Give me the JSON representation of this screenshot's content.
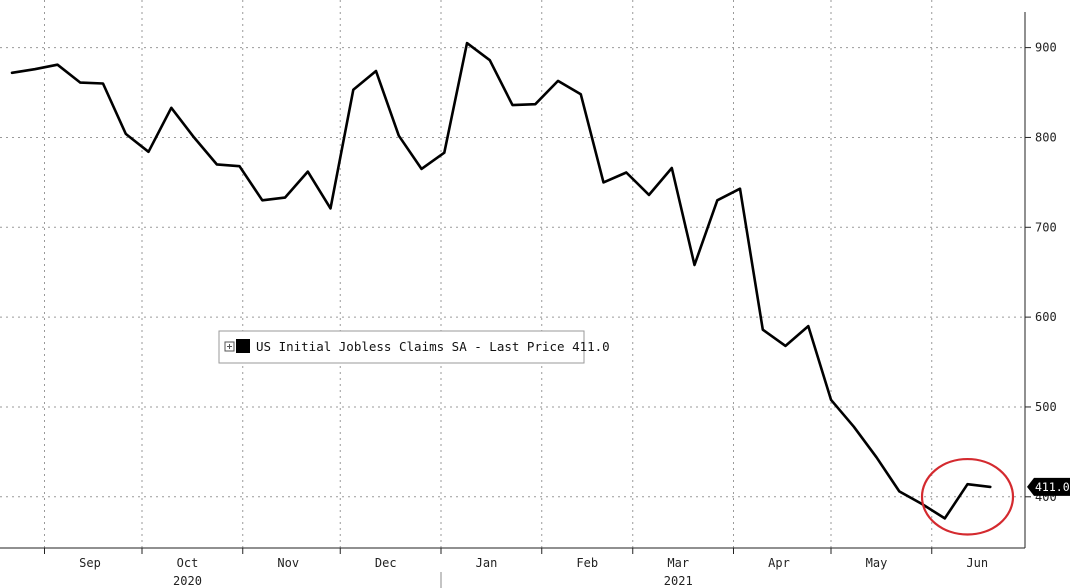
{
  "chart_data": {
    "type": "line",
    "title": "",
    "xlabel": "",
    "ylabel": "",
    "x": [
      "2020-08-22",
      "2020-08-29",
      "2020-09-05",
      "2020-09-12",
      "2020-09-19",
      "2020-09-26",
      "2020-10-03",
      "2020-10-10",
      "2020-10-17",
      "2020-10-24",
      "2020-10-31",
      "2020-11-07",
      "2020-11-14",
      "2020-11-21",
      "2020-11-28",
      "2020-12-05",
      "2020-12-12",
      "2020-12-19",
      "2020-12-26",
      "2021-01-02",
      "2021-01-09",
      "2021-01-16",
      "2021-01-23",
      "2021-01-30",
      "2021-02-06",
      "2021-02-13",
      "2021-02-20",
      "2021-02-27",
      "2021-03-06",
      "2021-03-13",
      "2021-03-20",
      "2021-03-27",
      "2021-04-03",
      "2021-04-10",
      "2021-04-17",
      "2021-04-24",
      "2021-05-01",
      "2021-05-08",
      "2021-05-15",
      "2021-05-22",
      "2021-05-29",
      "2021-06-05",
      "2021-06-12",
      "2021-06-19"
    ],
    "series": [
      {
        "name": "US Initial Jobless Claims SA",
        "color": "#000000",
        "values": [
          872,
          876,
          881,
          861,
          860,
          804,
          784,
          833,
          800,
          770,
          768,
          730,
          733,
          762,
          721,
          853,
          874,
          802,
          765,
          783,
          905,
          886,
          836,
          837,
          863,
          848,
          750,
          761,
          736,
          766,
          658,
          730,
          743,
          586,
          568,
          590,
          508,
          478,
          444,
          406,
          392,
          376,
          414,
          411
        ]
      }
    ],
    "ylim": [
      343,
      953
    ],
    "y_ticks": [
      400,
      500,
      600,
      700,
      800,
      900
    ],
    "y_tick_labels": [
      "400",
      "500",
      "600",
      "700",
      "800",
      "900"
    ],
    "months": [
      {
        "label": "Sep",
        "date": "2020-09-15"
      },
      {
        "label": "Oct",
        "date": "2020-10-15"
      },
      {
        "label": "Nov",
        "date": "2020-11-15"
      },
      {
        "label": "Dec",
        "date": "2020-12-15"
      },
      {
        "label": "Jan",
        "date": "2021-01-15"
      },
      {
        "label": "Feb",
        "date": "2021-02-15"
      },
      {
        "label": "Mar",
        "date": "2021-03-15"
      },
      {
        "label": "Apr",
        "date": "2021-04-15"
      },
      {
        "label": "May",
        "date": "2021-05-15"
      },
      {
        "label": "Jun",
        "date": "2021-06-15"
      }
    ],
    "month_boundaries": [
      "2020-09-01",
      "2020-10-01",
      "2020-11-01",
      "2020-12-01",
      "2021-01-01",
      "2021-02-01",
      "2021-03-01",
      "2021-04-01",
      "2021-05-01",
      "2021-06-01",
      "2021-07-01"
    ],
    "years": [
      {
        "label": "2020",
        "date": "2020-10-15"
      },
      {
        "label": "2021",
        "date": "2021-03-15"
      }
    ],
    "year_boundary": "2021-01-01",
    "legend": {
      "text": "US Initial Jobless Claims SA - Last Price 411.0",
      "placement": "center-left"
    },
    "last_price": {
      "label": "411.0",
      "value": 411,
      "color": "#000000"
    },
    "annotation": {
      "type": "circle",
      "color": "#d42a2f",
      "x_start": "2021-05-29",
      "x_end": "2021-06-26",
      "y_low": 358,
      "y_high": 442
    },
    "grid": true,
    "grid_style": "dotted",
    "axis_side": "right"
  }
}
